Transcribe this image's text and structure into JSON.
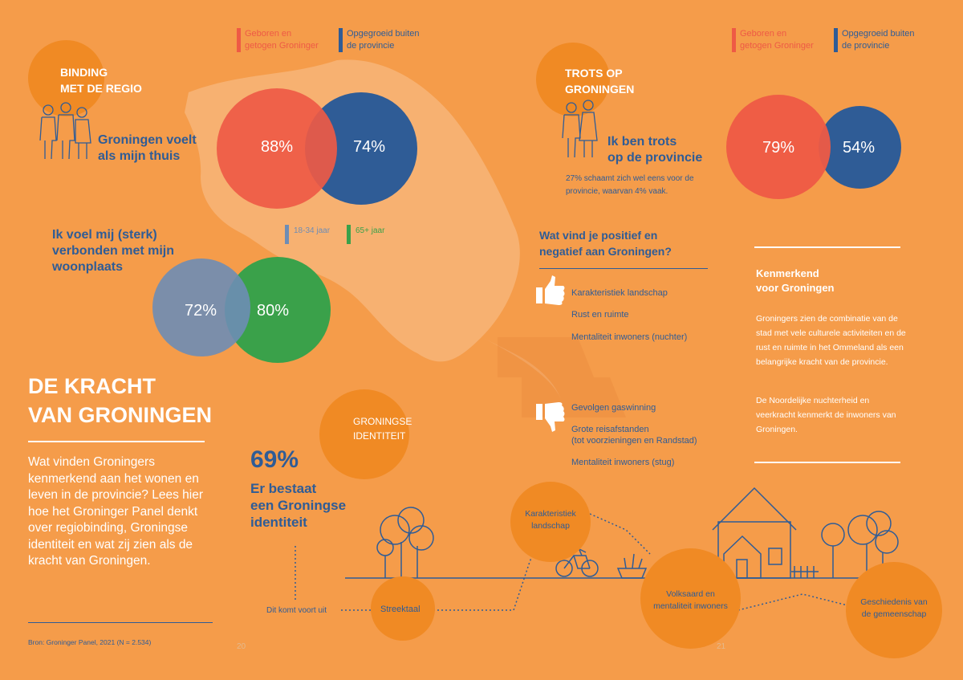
{
  "colors": {
    "background": "#F59C4A",
    "dark_orange": "#F08A24",
    "red": "#EE5A45",
    "blue": "#2F5C96",
    "light_blue": "#6E8DB5",
    "green": "#3AA14A",
    "map": "#F7B476"
  },
  "legend_left": {
    "born": "Geboren en\ngetogen Groninger",
    "outside": "Opgegroeid buiten\nde provincie"
  },
  "legend_right": {
    "born": "Geboren en\ngetogen Groninger",
    "outside": "Opgegroeid buiten\nde provincie"
  },
  "binding": {
    "title": "BINDING\nMET DE REGIO",
    "statement": "Groningen voelt\nals mijn thuis",
    "born_pct": "88%",
    "outside_pct": "74%"
  },
  "woonplaats": {
    "statement": "Ik voel mij (sterk)\nverbonden met mijn\nwoonplaats",
    "age_young": "18-34 jaar",
    "age_old": "65+ jaar",
    "young_pct": "72%",
    "old_pct": "80%"
  },
  "headline": {
    "title": "DE KRACHT\nVAN GRONINGEN",
    "intro": "Wat vinden Groningers kenmerkend aan het wonen en leven in de provincie? Lees hier hoe het Groninger Panel denkt over regiobinding, Groningse identiteit en wat zij zien als de kracht van Groningen.",
    "source": "Bron: Groninger Panel, 2021 (N = 2.534)"
  },
  "identiteit": {
    "bubble": "GRONINGSE\nIDENTITEIT",
    "pct": "69%",
    "statement": "Er bestaat\neen Groningse\nidentiteit",
    "origin": "Dit komt voort uit"
  },
  "page_numbers": {
    "left": "20",
    "right": "21"
  },
  "trots": {
    "title": "TROTS OP\nGRONINGEN",
    "statement": "Ik ben trots\nop de provincie",
    "note": "27% schaamt zich wel eens voor de\nprovincie, waarvan 4% vaak.",
    "born_pct": "79%",
    "outside_pct": "54%"
  },
  "positief_negatief": {
    "title": "Wat vind je positief en\nnegatief aan Groningen?",
    "positive": [
      "Karakteristiek landschap",
      "Rust en ruimte",
      "Mentaliteit inwoners (nuchter)"
    ],
    "negative": [
      "Gevolgen gaswinning",
      "Grote reisafstanden\n(tot voorzieningen en Randstad)",
      "Mentaliteit inwoners (stug)"
    ]
  },
  "kenmerkend": {
    "title": "Kenmerkend\nvoor Groningen",
    "p1": "Groningers zien de combinatie van de stad met vele culturele activiteiten en de rust en ruimte in het Ommeland als een belangrijke kracht van de provincie.",
    "p2": "De Noordelijke nuchterheid en veerkracht kenmerkt de inwoners van Groningen."
  },
  "scene_bubbles": {
    "streektaal": "Streektaal",
    "landschap": "Karakteristiek\nlandschap",
    "volksaard": "Volksaard en\nmentaliteit inwoners",
    "geschiedenis": "Geschiedenis van\nde gemeenschap"
  },
  "icons": [
    "people-icon",
    "couple-icon",
    "thumbs-up-icon",
    "thumbs-down-icon",
    "house-icon",
    "tree-icon",
    "cyclist-icon",
    "plant-icon"
  ]
}
